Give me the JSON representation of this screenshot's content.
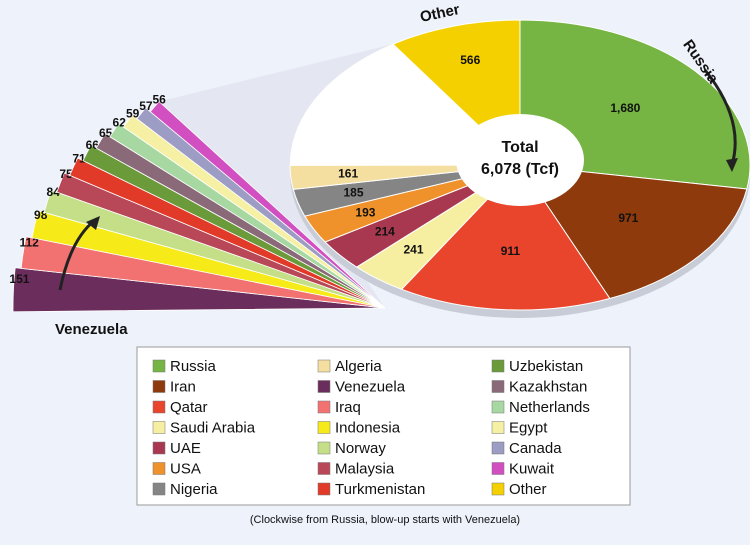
{
  "chart_data": {
    "type": "pie",
    "total_label": "Total",
    "total_value": "6,078 (Tcf)",
    "annotations": [
      "Other",
      "Russia",
      "Venezuela"
    ],
    "footnote": "(Clockwise from Russia, blow-up starts with Venezuela)",
    "slices": [
      {
        "name": "Russia",
        "color": "#76b443",
        "value": 1680,
        "value_label": "1,680",
        "blowup": false
      },
      {
        "name": "Iran",
        "color": "#8e3a0c",
        "value": 971,
        "value_label": "971",
        "blowup": false
      },
      {
        "name": "Qatar",
        "color": "#e8452c",
        "value": 911,
        "value_label": "911",
        "blowup": false
      },
      {
        "name": "Saudi Arabia",
        "color": "#f6efa2",
        "value": 241,
        "value_label": "241",
        "blowup": false
      },
      {
        "name": "UAE",
        "color": "#a83850",
        "value": 214,
        "value_label": "214",
        "blowup": false
      },
      {
        "name": "USA",
        "color": "#f0922c",
        "value": 193,
        "value_label": "193",
        "blowup": false
      },
      {
        "name": "Nigeria",
        "color": "#858585",
        "value": 185,
        "value_label": "185",
        "blowup": false
      },
      {
        "name": "Algeria",
        "color": "#f4dfa0",
        "value": 161,
        "value_label": "161",
        "blowup": false
      },
      {
        "name": "Venezuela",
        "color": "#6b2e5c",
        "value": 151,
        "value_label": "151",
        "blowup": true
      },
      {
        "name": "Iraq",
        "color": "#f27272",
        "value": 112,
        "value_label": "112",
        "blowup": true
      },
      {
        "name": "Indonesia",
        "color": "#f6ea18",
        "value": 98,
        "value_label": "98",
        "blowup": true
      },
      {
        "name": "Norway",
        "color": "#c4df88",
        "value": 84,
        "value_label": "84",
        "blowup": true
      },
      {
        "name": "Malaysia",
        "color": "#b84858",
        "value": 75,
        "value_label": "75",
        "blowup": true
      },
      {
        "name": "Turkmenistan",
        "color": "#e23a28",
        "value": 71,
        "value_label": "71",
        "blowup": true
      },
      {
        "name": "Uzbekistan",
        "color": "#6a9a3a",
        "value": 66,
        "value_label": "66",
        "blowup": true
      },
      {
        "name": "Kazakhstan",
        "color": "#8a6a78",
        "value": 65,
        "value_label": "65",
        "blowup": true
      },
      {
        "name": "Netherlands",
        "color": "#a8d8a2",
        "value": 62,
        "value_label": "62",
        "blowup": true
      },
      {
        "name": "Egypt",
        "color": "#f5f0a4",
        "value": 59,
        "value_label": "59",
        "blowup": true
      },
      {
        "name": "Canada",
        "color": "#9c9cc4",
        "value": 57,
        "value_label": "57",
        "blowup": true
      },
      {
        "name": "Kuwait",
        "color": "#d24fc2",
        "value": 56,
        "value_label": "56",
        "blowup": true
      },
      {
        "name": "Other",
        "color": "#f5d000",
        "value": 566,
        "value_label": "566",
        "blowup": false
      }
    ]
  }
}
